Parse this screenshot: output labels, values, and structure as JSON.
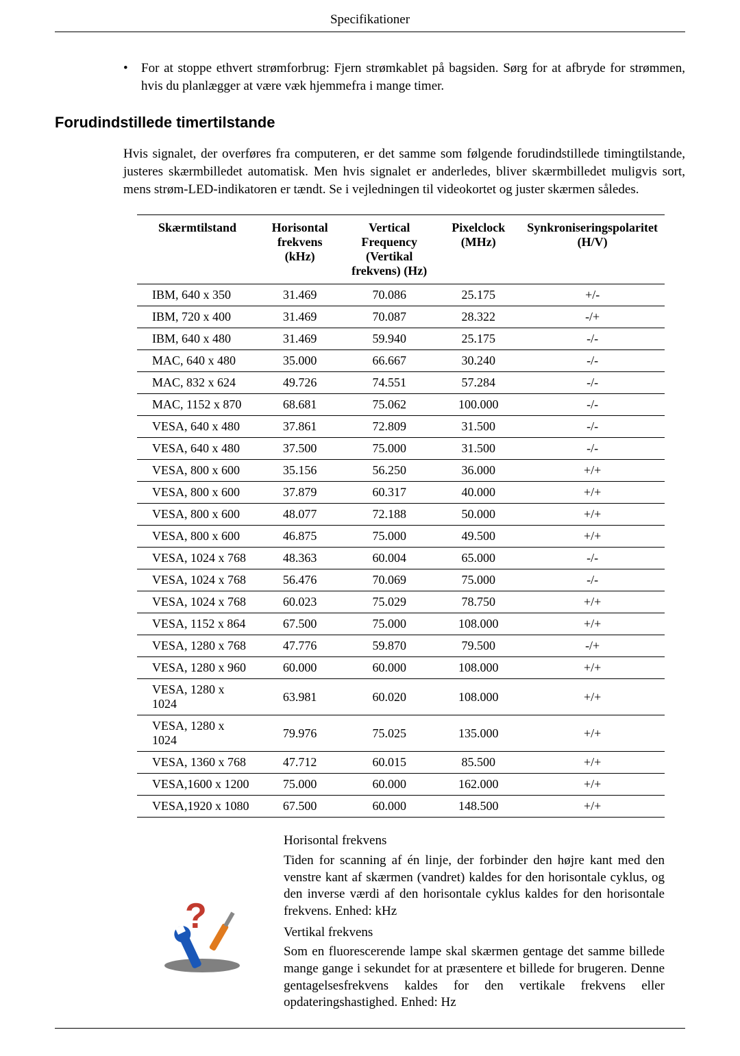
{
  "header": {
    "title": "Specifikationer"
  },
  "bullet": {
    "text": "For at stoppe ethvert strømforbrug: Fjern strømkablet på bagsiden. Sørg for at afbryde for strømmen, hvis du planlægger at være væk hjemmefra i mange timer."
  },
  "section": {
    "heading": "Forudindstillede timertilstande",
    "paragraph": "Hvis signalet, der overføres fra computeren, er det samme som følgende forudindstillede timingtilstande, justeres skærmbilledet automatisk. Men hvis signalet er anderledes, bliver skærmbilledet muligvis sort, mens strøm-LED-indikatoren er tændt. Se i vejledningen til videokortet og juster skærmen således."
  },
  "table": {
    "columns": [
      "Skærmtilstand",
      "Horisontal frekvens (kHz)",
      "Vertical Frequency (Vertikal frekvens) (Hz)",
      "Pixelclock (MHz)",
      "Synkroniseringspolaritet (H/V)"
    ],
    "col_widths": [
      "190px",
      "130px",
      "150px",
      "130px",
      "170px"
    ],
    "rows": [
      [
        "IBM, 640 x 350",
        "31.469",
        "70.086",
        "25.175",
        "+/-"
      ],
      [
        "IBM, 720 x 400",
        "31.469",
        "70.087",
        "28.322",
        "-/+"
      ],
      [
        "IBM, 640 x 480",
        "31.469",
        "59.940",
        "25.175",
        "-/-"
      ],
      [
        "MAC, 640 x 480",
        "35.000",
        "66.667",
        "30.240",
        "-/-"
      ],
      [
        "MAC, 832 x 624",
        "49.726",
        "74.551",
        "57.284",
        "-/-"
      ],
      [
        "MAC, 1152 x 870",
        "68.681",
        "75.062",
        "100.000",
        "-/-"
      ],
      [
        "VESA, 640 x 480",
        "37.861",
        "72.809",
        "31.500",
        "-/-"
      ],
      [
        "VESA, 640 x 480",
        "37.500",
        "75.000",
        "31.500",
        "-/-"
      ],
      [
        "VESA, 800 x 600",
        "35.156",
        "56.250",
        "36.000",
        "+/+"
      ],
      [
        "VESA, 800 x 600",
        "37.879",
        "60.317",
        "40.000",
        "+/+"
      ],
      [
        "VESA, 800 x 600",
        "48.077",
        "72.188",
        "50.000",
        "+/+"
      ],
      [
        "VESA, 800 x 600",
        "46.875",
        "75.000",
        "49.500",
        "+/+"
      ],
      [
        "VESA, 1024 x 768",
        "48.363",
        "60.004",
        "65.000",
        "-/-"
      ],
      [
        "VESA, 1024 x 768",
        "56.476",
        "70.069",
        "75.000",
        "-/-"
      ],
      [
        "VESA, 1024 x 768",
        "60.023",
        "75.029",
        "78.750",
        "+/+"
      ],
      [
        "VESA, 1152 x 864",
        "67.500",
        "75.000",
        "108.000",
        "+/+"
      ],
      [
        "VESA, 1280 x 768",
        "47.776",
        "59.870",
        "79.500",
        "-/+"
      ],
      [
        "VESA, 1280 x 960",
        "60.000",
        "60.000",
        "108.000",
        "+/+"
      ],
      [
        "VESA, 1280 x 1024",
        "63.981",
        "60.020",
        "108.000",
        "+/+"
      ],
      [
        "VESA, 1280 x 1024",
        "79.976",
        "75.025",
        "135.000",
        "+/+"
      ],
      [
        "VESA, 1360 x 768",
        "47.712",
        "60.015",
        "85.500",
        "+/+"
      ],
      [
        "VESA,1600 x 1200",
        "75.000",
        "60.000",
        "162.000",
        "+/+"
      ],
      [
        "VESA,1920 x 1080",
        "67.500",
        "60.000",
        "148.500",
        "+/+"
      ]
    ]
  },
  "footer": {
    "h_title": "Horisontal frekvens",
    "h_text": "Tiden for scanning af én linje, der forbinder den højre kant med den venstre kant af skærmen (vandret) kaldes for den horisontale cyklus, og den inverse værdi af den horisontale cyklus kaldes for den horisontale frekvens. Enhed: kHz",
    "v_title": "Vertikal frekvens",
    "v_text": "Som en fluorescerende lampe skal skærmen gentage det samme billede mange gange i sekundet for at præsentere et billede for brugeren. Denne gentagelsesfrekvens kaldes for den vertikale frekvens eller opdateringshastighed. Enhed: Hz"
  },
  "icon": {
    "colors": {
      "blue": "#1a57b8",
      "orange": "#e07a1e",
      "red": "#c23a2e",
      "shadow": "#2b2b2b"
    }
  }
}
